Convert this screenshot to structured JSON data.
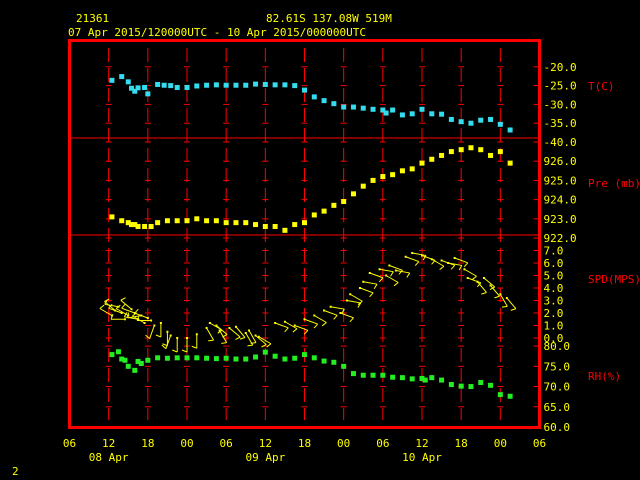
{
  "header": {
    "station": "21361",
    "location": "82.61S  137.08W   519M",
    "period": "07 Apr 2015/120000UTC - 10 Apr 2015/000000UTC"
  },
  "footer": {
    "page_number": "2"
  },
  "colors": {
    "frame": "#ff0000",
    "axis_text": "#ffff00",
    "label_text": "#ff0000",
    "header_text": "#ffff00",
    "temperature": "#33ddee",
    "pressure": "#ffff00",
    "wind": "#ffff00",
    "humidity": "#22ee22"
  },
  "chart_data": {
    "type": "scatter",
    "x_axis": {
      "hour_ticks": [
        "06",
        "12",
        "18",
        "00",
        "06",
        "12",
        "18",
        "00",
        "06",
        "12",
        "18",
        "00",
        "06"
      ],
      "day_labels": [
        {
          "label": "08 Apr",
          "at_hour": 12
        },
        {
          "label": "09 Apr",
          "at_hour": 36
        },
        {
          "label": "10 Apr",
          "at_hour": 60
        }
      ],
      "range_hours_since_07Apr_00UTC": [
        6,
        78
      ]
    },
    "panels": [
      {
        "name": "T(C)",
        "range": [
          -40,
          -15
        ],
        "ticks": [
          "-20.0",
          "-25.0",
          "-30.0",
          "-35.0",
          "-40.0"
        ],
        "tick_values": [
          -20,
          -25,
          -30,
          -35,
          -40
        ],
        "series": {
          "x": [
            12.5,
            14,
            15,
            15.5,
            16,
            16.5,
            17.5,
            18,
            19.5,
            20.5,
            21.5,
            22.5,
            24,
            25.5,
            27,
            28.5,
            30,
            31.5,
            33,
            34.5,
            36,
            37.5,
            39,
            40.5,
            42,
            43.5,
            45,
            46.5,
            48,
            49.5,
            51,
            52.5,
            54,
            54.5,
            55.5,
            57,
            58.5,
            60,
            61.5,
            63,
            64.5,
            66,
            67.5,
            69,
            70.5,
            72,
            73.5
          ],
          "y": [
            -23.6,
            -22.6,
            -24.0,
            -25.7,
            -26.5,
            -25.6,
            -25.5,
            -27.2,
            -24.7,
            -24.9,
            -25.0,
            -25.5,
            -25.5,
            -25.1,
            -24.9,
            -24.8,
            -24.9,
            -24.9,
            -24.9,
            -24.6,
            -24.7,
            -24.8,
            -24.8,
            -25.0,
            -26.2,
            -28.0,
            -29.0,
            -29.8,
            -30.7,
            -30.7,
            -31.0,
            -31.3,
            -31.5,
            -32.3,
            -31.5,
            -32.8,
            -32.5,
            -31.3,
            -32.5,
            -32.6,
            -34.0,
            -34.6,
            -35.0,
            -34.2,
            -34.0,
            -35.3,
            -36.8
          ]
        }
      },
      {
        "name": "Pre (mb)",
        "range": [
          922,
          927
        ],
        "ticks": [
          "926.0",
          "925.0",
          "924.0",
          "923.0",
          "922.0"
        ],
        "tick_values": [
          926,
          925,
          924,
          923,
          922
        ],
        "series": {
          "x": [
            12.5,
            14,
            15,
            15.5,
            16,
            16.5,
            17.5,
            18.5,
            19.5,
            21,
            22.5,
            24,
            25.5,
            27,
            28.5,
            30,
            31.5,
            33,
            34.5,
            36,
            37.5,
            39,
            40.5,
            42,
            43.5,
            45,
            46.5,
            48,
            49.5,
            51,
            52.5,
            54,
            55.5,
            57,
            58.5,
            60,
            61.5,
            63,
            64.5,
            66,
            67.5,
            69,
            70.5,
            72,
            73.5
          ],
          "y": [
            923.1,
            922.9,
            922.8,
            922.7,
            922.7,
            922.6,
            922.6,
            922.6,
            922.8,
            922.9,
            922.9,
            922.9,
            923.0,
            922.9,
            922.9,
            922.8,
            922.8,
            922.8,
            922.7,
            922.6,
            922.6,
            922.4,
            922.7,
            922.8,
            923.2,
            923.4,
            923.7,
            923.9,
            924.3,
            924.7,
            925.0,
            925.2,
            925.3,
            925.5,
            925.6,
            925.9,
            926.1,
            926.3,
            926.5,
            926.6,
            926.7,
            926.6,
            926.3,
            926.5,
            925.9
          ]
        }
      },
      {
        "name": "SPD(MPS)",
        "range": [
          0,
          8
        ],
        "ticks": [
          "7.0",
          "6.0",
          "5.0",
          "4.0",
          "3.0",
          "2.0",
          "1.0",
          "0.0"
        ],
        "tick_values": [
          7,
          6,
          5,
          4,
          3,
          2,
          1,
          0
        ],
        "series": {
          "x": [
            12.5,
            13,
            13.5,
            14,
            14.5,
            15,
            15.5,
            16,
            16.5,
            17,
            17.5,
            18,
            18.5,
            19,
            20,
            21,
            21.5,
            22.5,
            24,
            25.5,
            27,
            27.5,
            28.5,
            29,
            30.5,
            31.5,
            33,
            33.5,
            34.5,
            35,
            37.5,
            39,
            40.5,
            42,
            43.5,
            45,
            46,
            47.5,
            48.5,
            49,
            50.5,
            51,
            52,
            53.5,
            54.5,
            55,
            56,
            57.5,
            58.5,
            60,
            61.5,
            63,
            64,
            65,
            66.5,
            67,
            68.5,
            69.5,
            70.5,
            72,
            73
          ],
          "y": [
            1.8,
            2.2,
            2.5,
            2.0,
            1.5,
            1.8,
            2.3,
            2.0,
            1.5,
            1.8,
            1.2,
            1.6,
            1.4,
            1.0,
            1.2,
            0.5,
            0.2,
            0.0,
            0.0,
            0.3,
            0.8,
            1.2,
            1.0,
            0.6,
            0.8,
            0.9,
            0.4,
            0.6,
            0.2,
            0.1,
            1.2,
            1.3,
            1.0,
            1.5,
            1.8,
            2.2,
            2.5,
            2.0,
            3.0,
            3.5,
            4.0,
            4.5,
            5.2,
            5.5,
            5.0,
            5.8,
            5.4,
            6.5,
            6.8,
            6.6,
            6.3,
            6.2,
            6.0,
            6.4,
            5.5,
            4.8,
            4.5,
            4.8,
            4.2,
            3.5,
            3.2
          ],
          "direction_deg": [
            300,
            310,
            280,
            290,
            270,
            300,
            310,
            290,
            280,
            260,
            300,
            290,
            270,
            200,
            180,
            180,
            200,
            180,
            180,
            180,
            150,
            120,
            130,
            150,
            130,
            140,
            150,
            150,
            130,
            120,
            110,
            120,
            110,
            110,
            120,
            110,
            100,
            110,
            100,
            120,
            110,
            100,
            110,
            100,
            120,
            110,
            100,
            110,
            100,
            110,
            120,
            110,
            100,
            110,
            120,
            110,
            140,
            130,
            140,
            150,
            140
          ]
        }
      },
      {
        "name": "RH(%)",
        "range": [
          60,
          82
        ],
        "ticks": [
          "80.0",
          "75.0",
          "70.0",
          "65.0",
          "60.0"
        ],
        "tick_values": [
          80,
          75,
          70,
          65,
          60
        ],
        "series": {
          "x": [
            12.5,
            13.5,
            14,
            14.5,
            15,
            16,
            16.5,
            17,
            18,
            19.5,
            21,
            22.5,
            24,
            25.5,
            27,
            28.5,
            30,
            31.5,
            33,
            34.5,
            36,
            37.5,
            39,
            40.5,
            42,
            43.5,
            45,
            46.5,
            48,
            49.5,
            51,
            52.5,
            54,
            55.5,
            57,
            58.5,
            60,
            60.5,
            61.5,
            63,
            64.5,
            66,
            67.5,
            69,
            70.5,
            72,
            73.5
          ],
          "y": [
            77.9,
            78.6,
            76.8,
            76.5,
            75.0,
            74.0,
            76.2,
            75.7,
            76.5,
            77.1,
            77.0,
            77.1,
            77.1,
            77.1,
            77.0,
            76.9,
            77.0,
            76.8,
            76.8,
            77.3,
            78.5,
            77.5,
            76.8,
            77.0,
            77.9,
            77.1,
            76.3,
            76.0,
            75.0,
            73.2,
            72.8,
            72.8,
            72.8,
            72.3,
            72.2,
            71.9,
            72.0,
            71.6,
            72.2,
            71.6,
            70.5,
            70.1,
            70.0,
            71.0,
            70.3,
            68.0,
            67.6
          ]
        }
      }
    ],
    "grid": true
  }
}
